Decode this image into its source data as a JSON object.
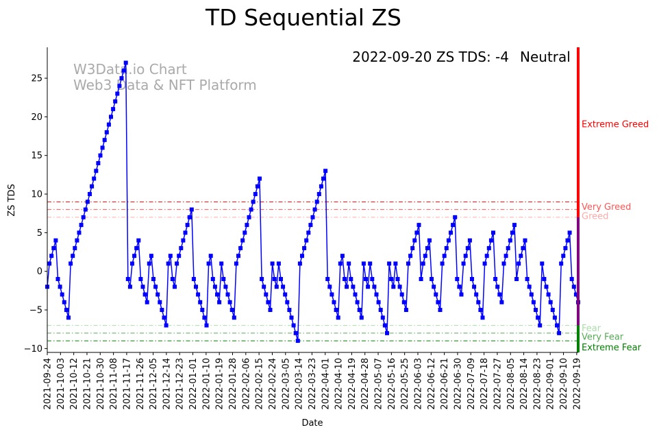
{
  "chart_data": {
    "type": "line",
    "title": "TD Sequential ZS",
    "xlabel": "Date",
    "ylabel": "ZS TDS",
    "ylim": [
      -10.5,
      29
    ],
    "y_ticks": [
      25,
      20,
      15,
      10,
      5,
      0,
      -5,
      -10
    ],
    "x_ticks": [
      "2021-09-24",
      "2021-10-03",
      "2021-10-12",
      "2021-10-21",
      "2021-10-30",
      "2021-11-08",
      "2021-11-17",
      "2021-11-26",
      "2021-12-05",
      "2021-12-14",
      "2021-12-23",
      "2022-01-01",
      "2022-01-10",
      "2022-01-19",
      "2022-01-28",
      "2022-02-06",
      "2022-02-15",
      "2022-02-24",
      "2022-03-05",
      "2022-03-14",
      "2022-03-23",
      "2022-04-01",
      "2022-04-10",
      "2022-04-19",
      "2022-04-28",
      "2022-05-07",
      "2022-05-16",
      "2022-05-25",
      "2022-06-03",
      "2022-06-12",
      "2022-06-21",
      "2022-06-30",
      "2022-07-09",
      "2022-07-18",
      "2022-07-27",
      "2022-08-05",
      "2022-08-14",
      "2022-08-23",
      "2022-09-01",
      "2022-09-10",
      "2022-09-19"
    ],
    "x_start": "2021-09-24",
    "x_end": "2022-09-20",
    "series": [
      {
        "name": "ZS TDS",
        "color": "#0000ff",
        "values": [
          -2,
          1,
          2,
          3,
          4,
          -1,
          -2,
          -3,
          -4,
          -5,
          -6,
          1,
          2,
          3,
          4,
          5,
          6,
          7,
          8,
          9,
          10,
          11,
          12,
          13,
          14,
          15,
          16,
          17,
          18,
          19,
          20,
          21,
          22,
          23,
          24,
          25,
          26,
          27,
          -1,
          -2,
          1,
          2,
          3,
          4,
          -1,
          -2,
          -3,
          -4,
          1,
          2,
          -1,
          -2,
          -3,
          -4,
          -5,
          -6,
          -7,
          1,
          2,
          -1,
          -2,
          1,
          2,
          3,
          4,
          5,
          6,
          7,
          8,
          -1,
          -2,
          -3,
          -4,
          -5,
          -6,
          -7,
          1,
          2,
          -1,
          -2,
          -3,
          -4,
          1,
          -1,
          -2,
          -3,
          -4,
          -5,
          -6,
          1,
          2,
          3,
          4,
          5,
          6,
          7,
          8,
          9,
          10,
          11,
          12,
          -1,
          -2,
          -3,
          -4,
          -5,
          1,
          -1,
          -2,
          1,
          -1,
          -2,
          -3,
          -4,
          -5,
          -6,
          -7,
          -8,
          -9,
          1,
          2,
          3,
          4,
          5,
          6,
          7,
          8,
          9,
          10,
          11,
          12,
          13,
          -1,
          -2,
          -3,
          -4,
          -5,
          -6,
          1,
          2,
          -1,
          -2,
          1,
          -1,
          -2,
          -3,
          -4,
          -5,
          -6,
          1,
          -1,
          -2,
          1,
          -1,
          -2,
          -3,
          -4,
          -5,
          -6,
          -7,
          -8,
          1,
          -1,
          -2,
          1,
          -1,
          -2,
          -3,
          -4,
          -5,
          1,
          2,
          3,
          4,
          5,
          6,
          -1,
          1,
          2,
          3,
          4,
          -1,
          -2,
          -3,
          -4,
          -5,
          1,
          2,
          3,
          4,
          5,
          6,
          7,
          -1,
          -2,
          -3,
          1,
          2,
          3,
          4,
          -1,
          -2,
          -3,
          -4,
          -5,
          -6,
          1,
          2,
          3,
          4,
          5,
          -1,
          -2,
          -3,
          -4,
          1,
          2,
          3,
          4,
          5,
          6,
          -1,
          1,
          2,
          3,
          4,
          -1,
          -2,
          -3,
          -4,
          -5,
          -6,
          -7,
          1,
          -1,
          -2,
          -3,
          -4,
          -5,
          -6,
          -7,
          -8,
          1,
          2,
          3,
          4,
          5,
          -1,
          -2,
          -3,
          -4
        ]
      }
    ],
    "thresholds": [
      {
        "label": "Extreme Greed",
        "value": 9,
        "color": "#ff0000"
      },
      {
        "label": "Very Greed",
        "value": 8,
        "color": "#ff5555"
      },
      {
        "label": "Greed",
        "value": 7,
        "color": "#ffaaaa"
      },
      {
        "label": "Fear",
        "value": -7,
        "color": "#aaddaa"
      },
      {
        "label": "Very Fear",
        "value": -8,
        "color": "#55aa55"
      },
      {
        "label": "Extreme Fear",
        "value": -9,
        "color": "#008000"
      }
    ],
    "zone_labels": [
      {
        "label": "Extreme Greed",
        "at": 19,
        "color": "#ff0000"
      },
      {
        "label": "Very Greed",
        "at": 8.3,
        "color": "#ff5555"
      },
      {
        "label": "Greed",
        "at": 7.1,
        "color": "#ffaaaa"
      },
      {
        "label": "Fear",
        "at": -7.4,
        "color": "#aaddaa"
      },
      {
        "label": "Very Fear",
        "at": -8.5,
        "color": "#55aa55"
      },
      {
        "label": "Extreme Fear",
        "at": -9.9,
        "color": "#008000"
      }
    ],
    "side_bar": [
      {
        "from": 7,
        "to": 29,
        "color": "#ff0000"
      },
      {
        "from": -7,
        "to": 7,
        "color": "#800080"
      },
      {
        "from": -10.5,
        "to": -7,
        "color": "#008000"
      }
    ],
    "status": {
      "text": "2022-09-20 ZS TDS: -4",
      "state": "Neutral",
      "state_color": "#800080"
    },
    "watermark": [
      "W3Data.io Chart",
      "Web3 Data & NFT Platform"
    ]
  }
}
